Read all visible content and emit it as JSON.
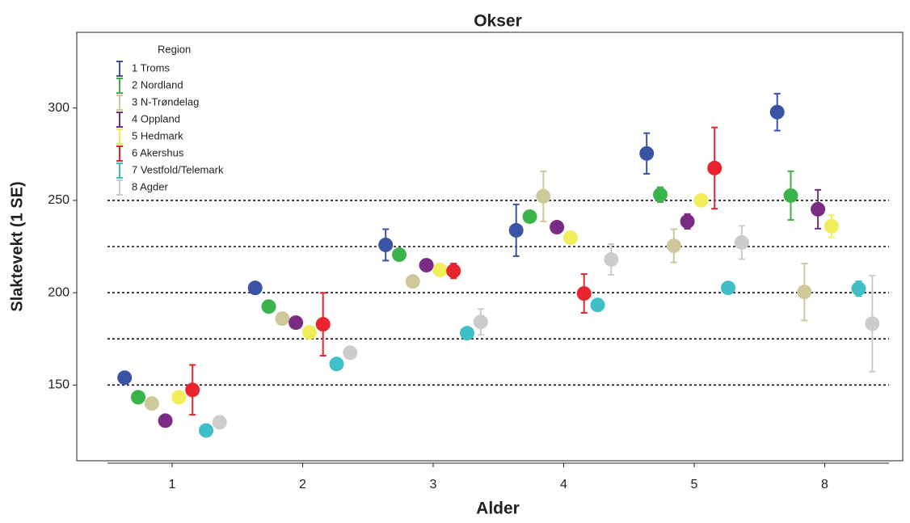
{
  "chart_data": {
    "type": "errorbar",
    "title": "Okser",
    "x_label": "Alder",
    "y_label": "Slaktevekt (1 SE)",
    "legend_title": "Region",
    "legend_position": "upper left",
    "categories": [
      "1",
      "2",
      "3",
      "4",
      "5",
      "8"
    ],
    "ylim": [
      109,
      341
    ],
    "yticks": [
      150,
      200,
      250,
      300
    ],
    "reference_lines": [
      150,
      175,
      200,
      225,
      250
    ],
    "series": [
      {
        "name": "1 Troms",
        "color": "#3a53a4",
        "values": [
          154,
          202.6,
          225.9,
          233.8,
          275.4,
          297.8
        ],
        "errors": [
          null,
          null,
          8.5,
          14,
          11,
          10
        ]
      },
      {
        "name": "2 Nordland",
        "color": "#3bb34a",
        "values": [
          143.4,
          192.5,
          220.6,
          241.2,
          253.1,
          252.6
        ],
        "errors": [
          null,
          null,
          null,
          3,
          4,
          13.2
        ]
      },
      {
        "name": "3 N-Trøndelag",
        "color": "#cfc89a",
        "values": [
          140,
          186,
          206.1,
          252.2,
          225.4,
          200.4
        ],
        "errors": [
          null,
          null,
          3,
          13.6,
          9,
          15.4
        ]
      },
      {
        "name": "4 Oppland",
        "color": "#7a2c85",
        "values": [
          130.7,
          183.8,
          214.9,
          235.5,
          238.6,
          245.2
        ],
        "errors": [
          null,
          null,
          null,
          3,
          4,
          10.5
        ]
      },
      {
        "name": "5 Hedmark",
        "color": "#f2ee5a",
        "values": [
          143.4,
          178.5,
          212.3,
          229.8,
          250,
          236
        ],
        "errors": [
          null,
          null,
          null,
          3,
          2,
          6
        ]
      },
      {
        "name": "6 Akershus",
        "color": "#e8252e",
        "values": [
          147.4,
          182.9,
          211.8,
          199.6,
          267.5,
          null
        ],
        "errors": [
          13.5,
          17,
          4,
          10.5,
          22,
          null
        ]
      },
      {
        "name": "7 Vestfold/Telemark",
        "color": "#3fbfc7",
        "values": [
          125.4,
          161.4,
          178.1,
          193.4,
          202.6,
          202.2
        ],
        "errors": [
          null,
          null,
          null,
          null,
          null,
          4
        ]
      },
      {
        "name": "8 Agder",
        "color": "#cccccc",
        "values": [
          129.8,
          167.5,
          184.2,
          218,
          227.2,
          183.3
        ],
        "errors": [
          null,
          null,
          7,
          8.3,
          9,
          26
        ]
      }
    ]
  }
}
